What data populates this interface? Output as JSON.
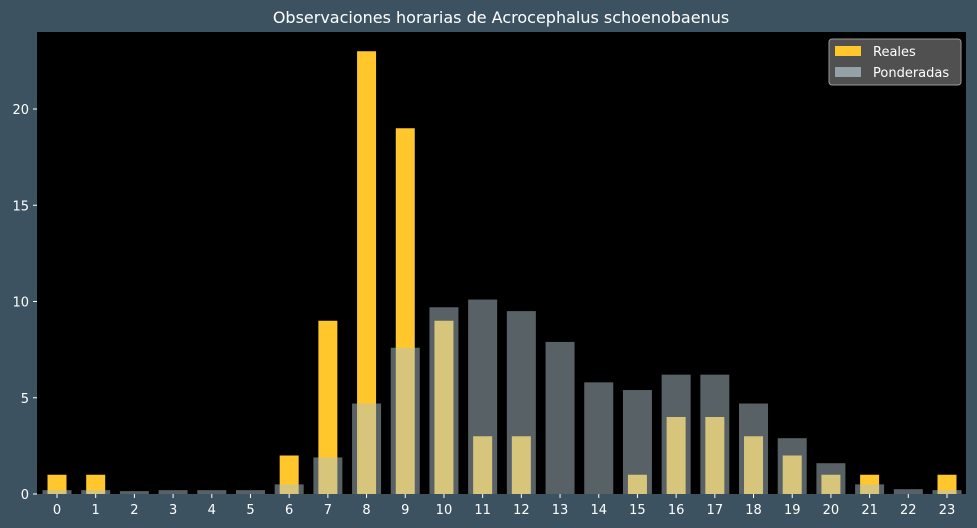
{
  "chart_data": {
    "type": "bar",
    "title": "Observaciones horarias de Acrocephalus schoenobaenus",
    "xlabel": "",
    "ylabel": "",
    "categories": [
      "0",
      "1",
      "2",
      "3",
      "4",
      "5",
      "6",
      "7",
      "8",
      "9",
      "10",
      "11",
      "12",
      "13",
      "14",
      "15",
      "16",
      "17",
      "18",
      "19",
      "20",
      "21",
      "22",
      "23"
    ],
    "ylim": [
      0,
      24
    ],
    "yticks": [
      0,
      5,
      10,
      15,
      20
    ],
    "grid": false,
    "legend_position": "top-right",
    "series": [
      {
        "name": "Reales",
        "color": "#ffc72c",
        "values": [
          1,
          1,
          0,
          0,
          0,
          0,
          2,
          9,
          23,
          19,
          9,
          3,
          3,
          0,
          0,
          1,
          4,
          4,
          3,
          2,
          1,
          1,
          0,
          1
        ]
      },
      {
        "name": "Ponderadas",
        "color": "#b0c4cc",
        "values": [
          0.2,
          0.2,
          0.15,
          0.2,
          0.2,
          0.2,
          0.5,
          1.9,
          4.7,
          7.6,
          9.7,
          10.1,
          9.5,
          7.9,
          5.8,
          5.4,
          6.2,
          6.2,
          4.7,
          2.9,
          1.6,
          0.5,
          0.25,
          0.2
        ]
      }
    ]
  },
  "colors": {
    "background": "#3d5260",
    "plot_area": "#000000",
    "legend_box": "#505050"
  }
}
